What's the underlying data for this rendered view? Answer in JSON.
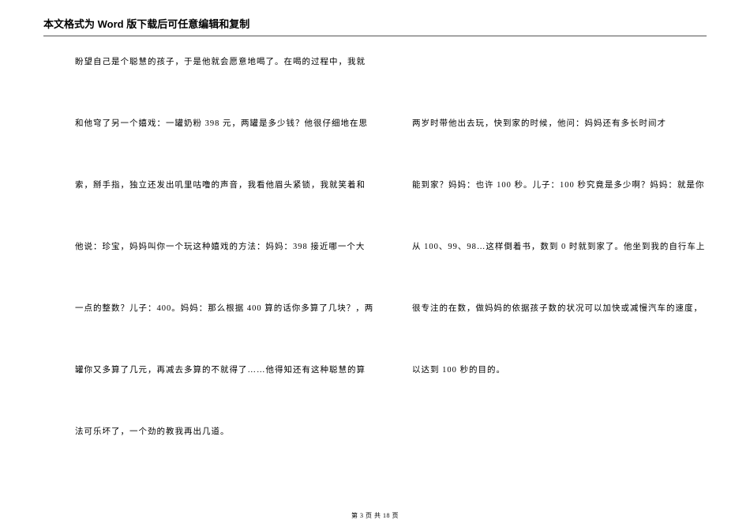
{
  "header": {
    "text": "本文格式为 Word 版下载后可任意编辑和复制"
  },
  "leftColumn": {
    "line0": "盼望自己是个聪慧的孩子，于是他就会愿意地喝了。在喝的过程中，我就",
    "line1": "和他穹了另一个嬉戏：一罐奶粉 398 元，两罐是多少钱？他很仔细地在思",
    "line2": "索，掰手指，独立还发出叽里咕噜的声音，我看他眉头紧锁，我就笑着和",
    "line3": "他说：珍宝，妈妈叫你一个玩这种嬉戏的方法：妈妈：398 接近哪一个大",
    "line4": "一点的整数？儿子：400。妈妈：那么根据 400 算的话你多算了几块？，两",
    "line5": "罐你又多算了几元，再减去多算的不就得了……他得知还有这种聪慧的算",
    "line6": "法可乐坏了，一个劲的教我再出几道。"
  },
  "rightColumn": {
    "line1": "两岁时带他出去玩，快到家的时候，他问：妈妈还有多长时间才",
    "line2": "能到家？妈妈：也许 100 秒。儿子：100 秒究竟是多少啊？妈妈：就是你",
    "line3": "从 100、99、98…这样倒着书，数到 0 时就到家了。他坐到我的自行车上",
    "line4": "很专注的在数，做妈妈的依据孩子数的状况可以加快或减慢汽车的速度，",
    "line5": "以达到 100 秒的目的。"
  },
  "footer": {
    "page_current": "3",
    "page_total": "18",
    "prefix": "第",
    "mid": "页 共",
    "suffix": "页"
  }
}
